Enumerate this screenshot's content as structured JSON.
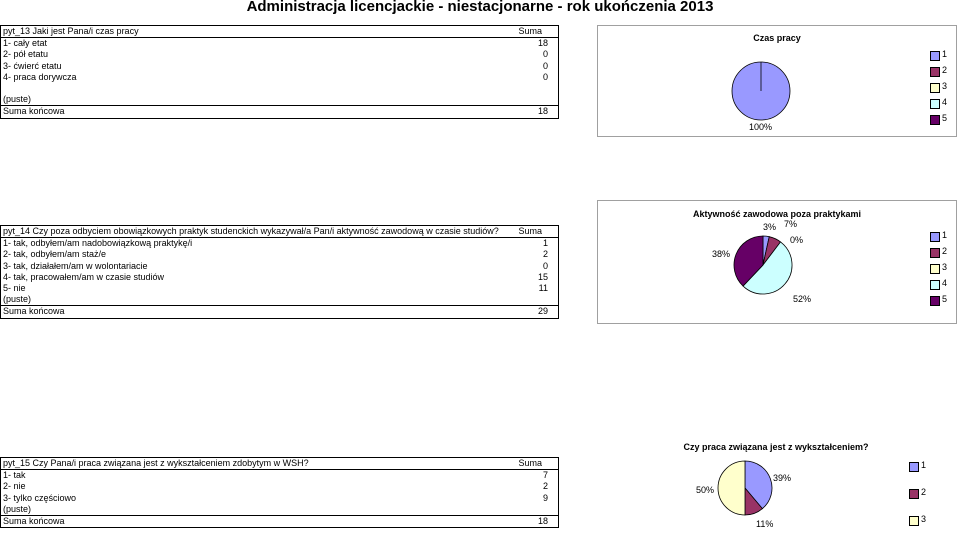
{
  "title": "Administracja licencjackie - niestacjonarne - rok ukończenia 2013",
  "tables": [
    {
      "header_label": "pyt_13 Jaki jest Pana/i czas pracy",
      "header_value": "Suma",
      "rows": [
        {
          "label": "1- cały etat",
          "value": "18"
        },
        {
          "label": "2- pół etatu",
          "value": "0"
        },
        {
          "label": "3- ćwierć etatu",
          "value": "0"
        },
        {
          "label": "4- praca dorywcza",
          "value": "0"
        },
        {
          "label": "",
          "value": ""
        },
        {
          "label": "(puste)",
          "value": ""
        }
      ],
      "total_label": "Suma końcowa",
      "total_value": "18"
    },
    {
      "header_label": "pyt_14 Czy poza odbyciem obowiązkowych praktyk studenckich wykazywał/a Pan/i aktywność zawodową w czasie studiów?",
      "header_value": "Suma",
      "rows": [
        {
          "label": "1- tak, odbyłem/am nadobowiązkową praktykę/i",
          "value": "1"
        },
        {
          "label": "2- tak, odbyłem/am staż/e",
          "value": "2"
        },
        {
          "label": "3- tak, działałem/am w wolontariacie",
          "value": "0"
        },
        {
          "label": "4- tak, pracowałem/am w czasie studiów",
          "value": "15"
        },
        {
          "label": "5- nie",
          "value": "11"
        },
        {
          "label": "(puste)",
          "value": ""
        }
      ],
      "total_label": "Suma końcowa",
      "total_value": "29"
    },
    {
      "header_label": "pyt_15 Czy Pana/i praca związana jest z wykształceniem zdobytym w WSH?",
      "header_value": "Suma",
      "rows": [
        {
          "label": "1- tak",
          "value": "7"
        },
        {
          "label": "2- nie",
          "value": "2"
        },
        {
          "label": "3- tylko częściowo",
          "value": "9"
        },
        {
          "label": "(puste)",
          "value": ""
        }
      ],
      "total_label": "Suma końcowa",
      "total_value": "18"
    }
  ],
  "charts": [
    {
      "title": "Czas pracy",
      "legend": [
        "1",
        "2",
        "3",
        "4",
        "5"
      ],
      "labels": [
        "100%"
      ]
    },
    {
      "title": "Aktywność zawodowa poza praktykami",
      "legend": [
        "1",
        "2",
        "3",
        "4",
        "5"
      ],
      "labels": [
        "3%",
        "7%",
        "0%",
        "52%",
        "38%"
      ]
    },
    {
      "title": "Czy praca związana jest z wykształceniem?",
      "legend": [
        "1",
        "2",
        "3"
      ],
      "labels": [
        "39%",
        "11%",
        "50%"
      ]
    }
  ],
  "chart_data": [
    {
      "type": "pie",
      "title": "Czas pracy",
      "categories": [
        "1",
        "2",
        "3",
        "4",
        "5"
      ],
      "values": [
        18,
        0,
        0,
        0,
        0
      ],
      "colors": [
        "#9999ff",
        "#993366",
        "#ffffcc",
        "#ccffff",
        "#660066"
      ],
      "legend_position": "right"
    },
    {
      "type": "pie",
      "title": "Aktywność zawodowa poza praktykami",
      "categories": [
        "1",
        "2",
        "3",
        "4",
        "5"
      ],
      "values": [
        1,
        2,
        0,
        15,
        11
      ],
      "colors": [
        "#9999ff",
        "#993366",
        "#ffffcc",
        "#ccffff",
        "#660066"
      ],
      "legend_position": "right"
    },
    {
      "type": "pie",
      "title": "Czy praca związana jest z wykształceniem?",
      "categories": [
        "1",
        "2",
        "3"
      ],
      "values": [
        7,
        2,
        9
      ],
      "colors": [
        "#9999ff",
        "#993366",
        "#ffffcc"
      ],
      "legend_position": "right"
    }
  ]
}
